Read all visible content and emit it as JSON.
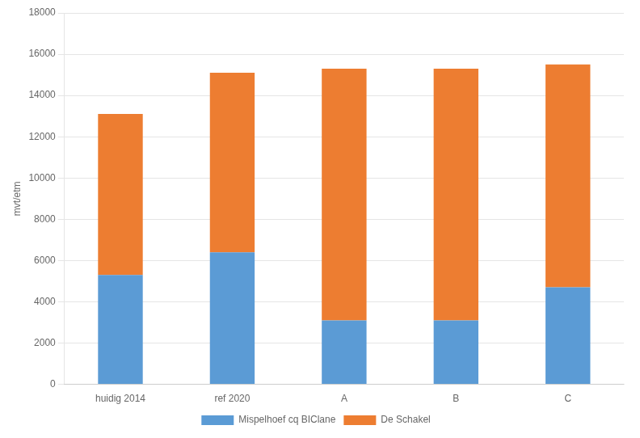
{
  "chart_data": {
    "type": "bar",
    "stacked": true,
    "categories": [
      "huidig 2014",
      "ref 2020",
      "A",
      "B",
      "C"
    ],
    "series": [
      {
        "name": "Mispelhoef cq BIClane",
        "color": "#5B9BD5",
        "values": [
          5300,
          6400,
          3100,
          3100,
          4700
        ]
      },
      {
        "name": "De Schakel",
        "color": "#ED7D31",
        "values": [
          7800,
          8700,
          12200,
          12200,
          10800
        ]
      }
    ],
    "ylabel": "mvt/etm",
    "ylim": [
      0,
      18000
    ],
    "yticks": [
      0,
      2000,
      4000,
      6000,
      8000,
      10000,
      12000,
      14000,
      16000,
      18000
    ],
    "grid": true,
    "legend": "bottom"
  }
}
